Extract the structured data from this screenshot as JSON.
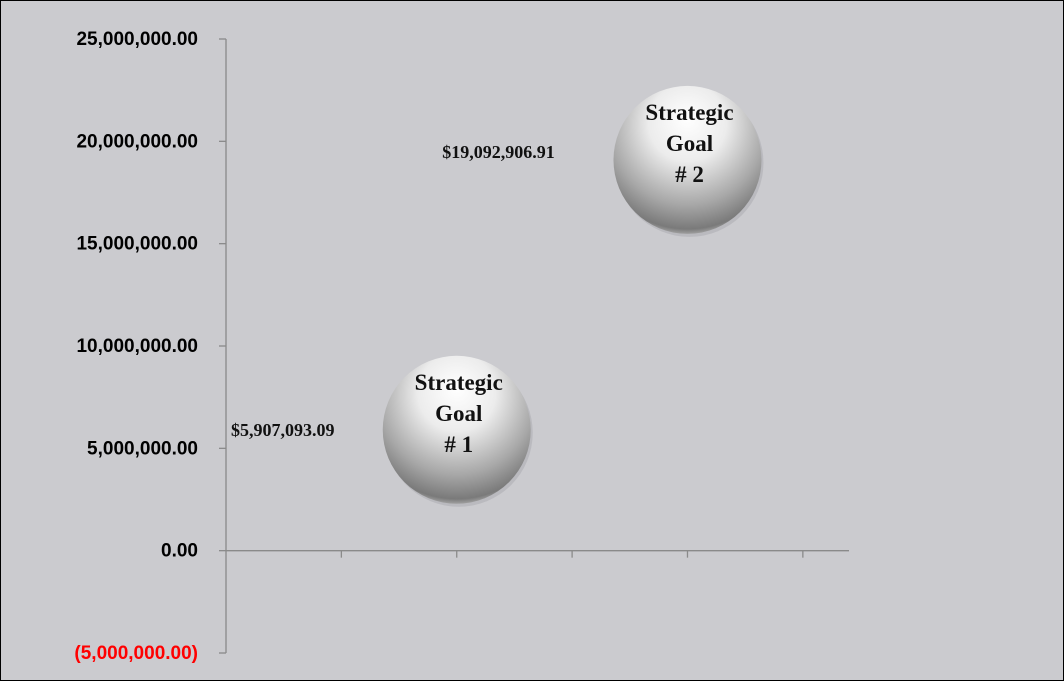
{
  "chart_data": {
    "type": "scatter",
    "title": "",
    "xlabel": "",
    "ylabel": "",
    "ylim": [
      -5000000,
      25000000
    ],
    "xlim": [
      0,
      5.4
    ],
    "grid": false,
    "y_tick_values": [
      -5000000,
      0,
      5000000,
      10000000,
      15000000,
      20000000,
      25000000
    ],
    "y_tick_labels": [
      "(5,000,000.00)",
      "0.00",
      "5,000,000.00",
      "10,000,000.00",
      "15,000,000.00",
      "20,000,000.00",
      "25,000,000.00"
    ],
    "negative_label_color": "#ff0000",
    "label_color": "#000000",
    "x_tick_values": [
      1,
      2,
      3,
      4,
      5
    ],
    "points": [
      {
        "x": 2.0,
        "y": 5907093.09,
        "data_label": "$5,907,093.09",
        "bubble_lines": [
          "Strategic",
          "Goal",
          "# 1"
        ]
      },
      {
        "x": 4.0,
        "y": 19092906.91,
        "data_label": "$19,092,906.91",
        "bubble_lines": [
          "Strategic",
          "Goal",
          "# 2"
        ]
      }
    ]
  }
}
